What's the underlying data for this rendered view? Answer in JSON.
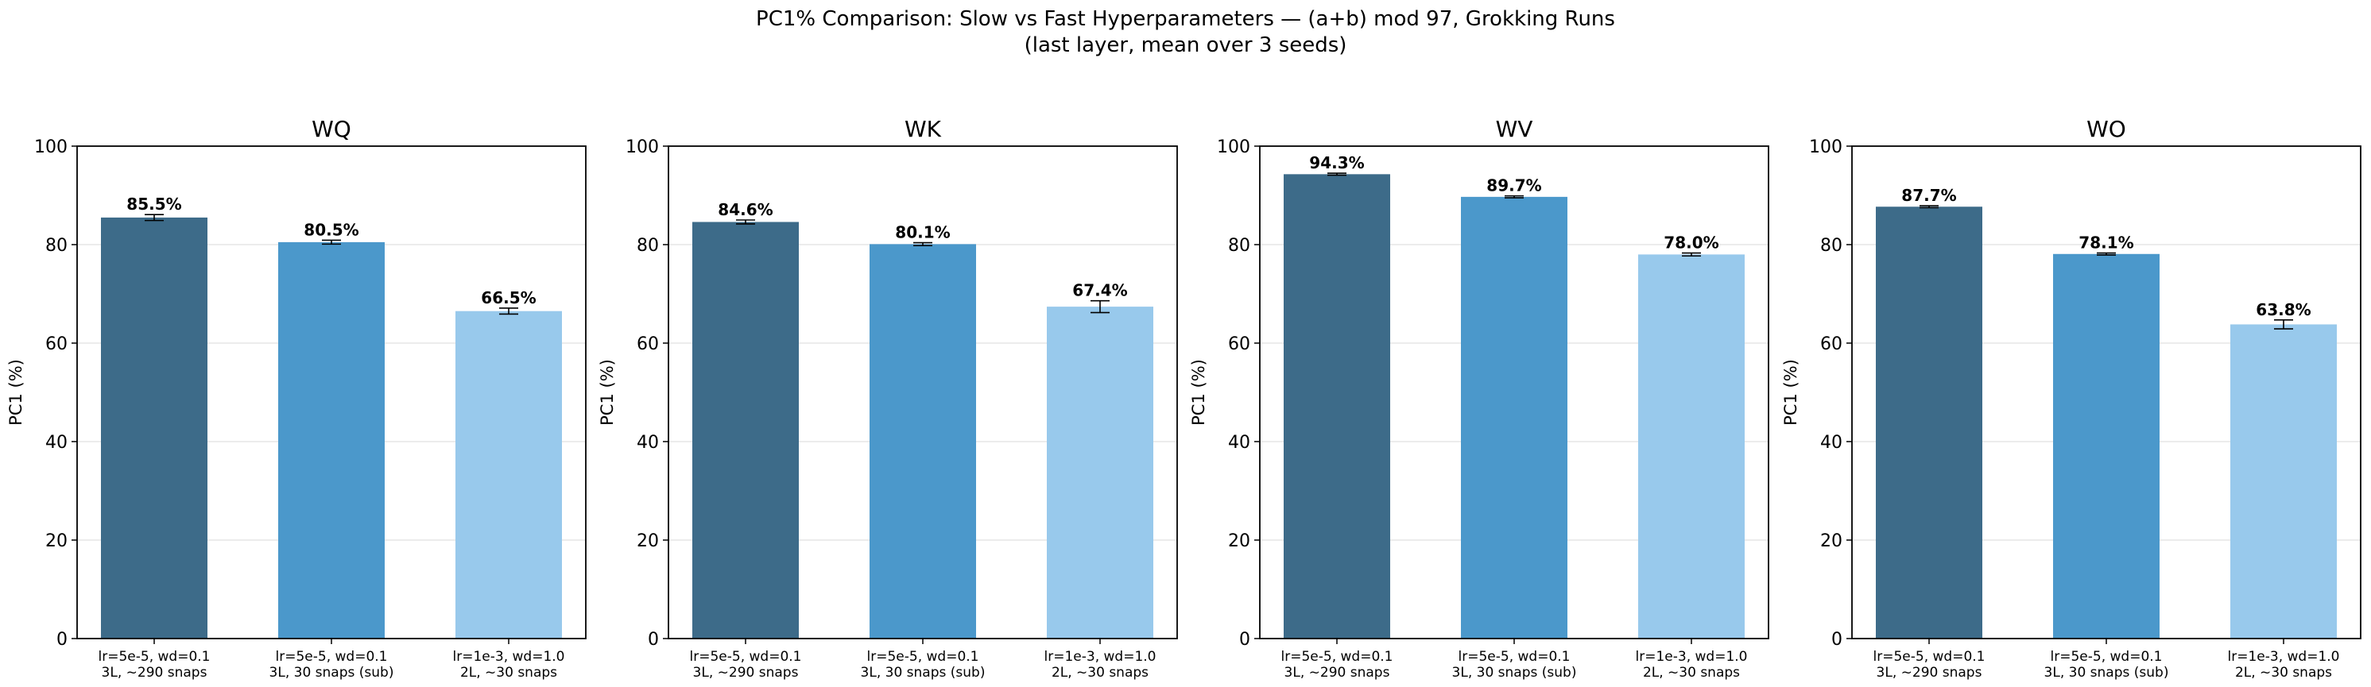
{
  "figure": {
    "title_line1": "PC1% Comparison: Slow vs Fast Hyperparameters — (a+b) mod 97, Grokking Runs",
    "title_line2": "(last layer, mean over 3 seeds)"
  },
  "colors": {
    "series": [
      "#3d6b89",
      "#4b98cb",
      "#98c9ec"
    ],
    "error_bar": "#000000",
    "grid": "#e6e6e6"
  },
  "chart_data": [
    {
      "type": "bar",
      "title": "WQ",
      "ylabel": "PC1 (%)",
      "ylim": [
        0,
        100
      ],
      "yticks": [
        0,
        20,
        40,
        60,
        80,
        100
      ],
      "grid": "horizontal",
      "categories": [
        [
          "lr=5e-5, wd=0.1",
          "3L, ~290 snaps"
        ],
        [
          "lr=5e-5, wd=0.1",
          "3L, 30 snaps (sub)"
        ],
        [
          "lr=1e-3, wd=1.0",
          "2L, ~30 snaps"
        ]
      ],
      "values": [
        85.5,
        80.5,
        66.5
      ],
      "errors": [
        0.6,
        0.4,
        0.6
      ],
      "value_labels": [
        "85.5%",
        "80.5%",
        "66.5%"
      ]
    },
    {
      "type": "bar",
      "title": "WK",
      "ylabel": "PC1 (%)",
      "ylim": [
        0,
        100
      ],
      "yticks": [
        0,
        20,
        40,
        60,
        80,
        100
      ],
      "grid": "horizontal",
      "categories": [
        [
          "lr=5e-5, wd=0.1",
          "3L, ~290 snaps"
        ],
        [
          "lr=5e-5, wd=0.1",
          "3L, 30 snaps (sub)"
        ],
        [
          "lr=1e-3, wd=1.0",
          "2L, ~30 snaps"
        ]
      ],
      "values": [
        84.6,
        80.1,
        67.4
      ],
      "errors": [
        0.4,
        0.3,
        1.2
      ],
      "value_labels": [
        "84.6%",
        "80.1%",
        "67.4%"
      ]
    },
    {
      "type": "bar",
      "title": "WV",
      "ylabel": "PC1 (%)",
      "ylim": [
        0,
        100
      ],
      "yticks": [
        0,
        20,
        40,
        60,
        80,
        100
      ],
      "grid": "horizontal",
      "categories": [
        [
          "lr=5e-5, wd=0.1",
          "3L, ~290 snaps"
        ],
        [
          "lr=5e-5, wd=0.1",
          "3L, 30 snaps (sub)"
        ],
        [
          "lr=1e-3, wd=1.0",
          "2L, ~30 snaps"
        ]
      ],
      "values": [
        94.3,
        89.7,
        78.0
      ],
      "errors": [
        0.2,
        0.2,
        0.3
      ],
      "value_labels": [
        "94.3%",
        "89.7%",
        "78.0%"
      ]
    },
    {
      "type": "bar",
      "title": "WO",
      "ylabel": "PC1 (%)",
      "ylim": [
        0,
        100
      ],
      "yticks": [
        0,
        20,
        40,
        60,
        80,
        100
      ],
      "grid": "horizontal",
      "categories": [
        [
          "lr=5e-5, wd=0.1",
          "3L, ~290 snaps"
        ],
        [
          "lr=5e-5, wd=0.1",
          "3L, 30 snaps (sub)"
        ],
        [
          "lr=1e-3, wd=1.0",
          "2L, ~30 snaps"
        ]
      ],
      "values": [
        87.7,
        78.1,
        63.8
      ],
      "errors": [
        0.2,
        0.2,
        0.9
      ],
      "value_labels": [
        "87.7%",
        "78.1%",
        "63.8%"
      ]
    }
  ]
}
